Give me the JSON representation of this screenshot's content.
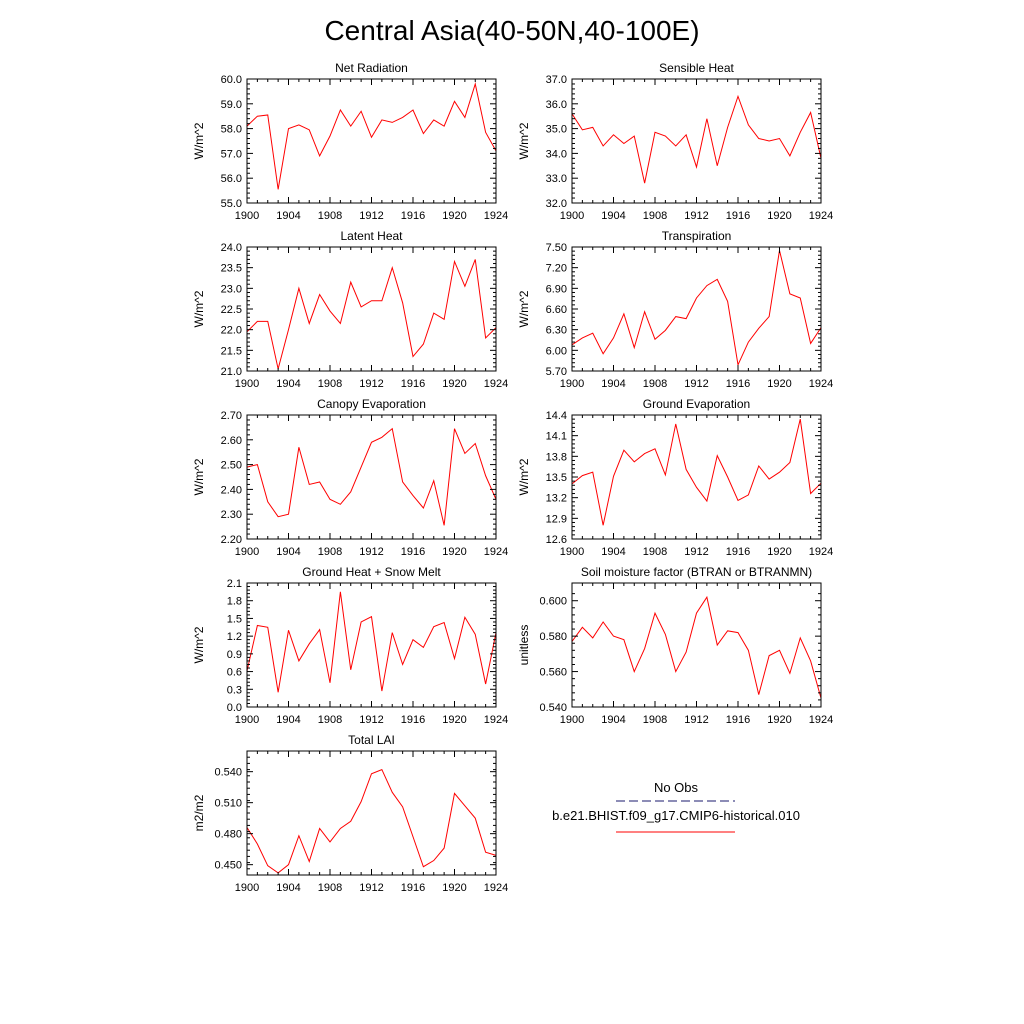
{
  "title": "Central Asia(40-50N,40-100E)",
  "legend": {
    "obs_label": "No Obs",
    "model_label": "b.e21.BHIST.f09_g17.CMIP6-historical.010",
    "obs_color": "#1a1a6e",
    "model_color": "#ff0000"
  },
  "chart_data": [
    {
      "type": "line",
      "title": "Net Radiation",
      "ylabel": "W/m^2",
      "ylim": [
        55.0,
        60.0
      ],
      "yticks": [
        55.0,
        56.0,
        57.0,
        58.0,
        59.0,
        60.0
      ],
      "yticklabels": [
        "55.0",
        "56.0",
        "57.0",
        "58.0",
        "59.0",
        "60.0"
      ],
      "xlim": [
        1900,
        1924
      ],
      "xticks": [
        1900,
        1904,
        1908,
        1912,
        1916,
        1920,
        1924
      ],
      "series": [
        {
          "color": "#ff0000",
          "x": [
            1900,
            1901,
            1902,
            1903,
            1904,
            1905,
            1906,
            1907,
            1908,
            1909,
            1910,
            1911,
            1912,
            1913,
            1914,
            1915,
            1916,
            1917,
            1918,
            1919,
            1920,
            1921,
            1922,
            1923,
            1924
          ],
          "values": [
            58.1,
            58.5,
            58.55,
            55.55,
            58.0,
            58.15,
            57.95,
            56.9,
            57.7,
            58.75,
            58.1,
            58.7,
            57.65,
            58.35,
            58.25,
            58.45,
            58.75,
            57.8,
            58.35,
            58.1,
            59.1,
            58.45,
            59.8,
            57.85,
            57.1
          ]
        }
      ]
    },
    {
      "type": "line",
      "title": "Sensible Heat",
      "ylabel": "W/m^2",
      "ylim": [
        32.0,
        37.0
      ],
      "yticks": [
        32.0,
        33.0,
        34.0,
        35.0,
        36.0,
        37.0
      ],
      "yticklabels": [
        "32.0",
        "33.0",
        "34.0",
        "35.0",
        "36.0",
        "37.0"
      ],
      "xlim": [
        1900,
        1924
      ],
      "xticks": [
        1900,
        1904,
        1908,
        1912,
        1916,
        1920,
        1924
      ],
      "series": [
        {
          "color": "#ff0000",
          "x": [
            1900,
            1901,
            1902,
            1903,
            1904,
            1905,
            1906,
            1907,
            1908,
            1909,
            1910,
            1911,
            1912,
            1913,
            1914,
            1915,
            1916,
            1917,
            1918,
            1919,
            1920,
            1921,
            1922,
            1923,
            1924
          ],
          "values": [
            35.6,
            34.95,
            35.05,
            34.3,
            34.75,
            34.4,
            34.7,
            32.8,
            34.85,
            34.7,
            34.3,
            34.75,
            33.45,
            35.4,
            33.5,
            35.05,
            36.3,
            35.15,
            34.6,
            34.5,
            34.6,
            33.9,
            34.85,
            35.65,
            33.8
          ]
        }
      ]
    },
    {
      "type": "line",
      "title": "Latent Heat",
      "ylabel": "W/m^2",
      "ylim": [
        21.0,
        24.0
      ],
      "yticks": [
        21.0,
        21.5,
        22.0,
        22.5,
        23.0,
        23.5,
        24.0
      ],
      "yticklabels": [
        "21.0",
        "21.5",
        "22.0",
        "22.5",
        "23.0",
        "23.5",
        "24.0"
      ],
      "xlim": [
        1900,
        1924
      ],
      "xticks": [
        1900,
        1904,
        1908,
        1912,
        1916,
        1920,
        1924
      ],
      "series": [
        {
          "color": "#ff0000",
          "x": [
            1900,
            1901,
            1902,
            1903,
            1904,
            1905,
            1906,
            1907,
            1908,
            1909,
            1910,
            1911,
            1912,
            1913,
            1914,
            1915,
            1916,
            1917,
            1918,
            1919,
            1920,
            1921,
            1922,
            1923,
            1924
          ],
          "values": [
            21.95,
            22.2,
            22.2,
            21.05,
            22.0,
            23.0,
            22.15,
            22.85,
            22.45,
            22.15,
            23.15,
            22.55,
            22.7,
            22.7,
            23.5,
            22.65,
            21.35,
            21.65,
            22.4,
            22.25,
            23.65,
            23.05,
            23.7,
            21.8,
            22.05
          ]
        }
      ]
    },
    {
      "type": "line",
      "title": "Transpiration",
      "ylabel": "W/m^2",
      "ylim": [
        5.7,
        7.5
      ],
      "yticks": [
        5.7,
        6.0,
        6.3,
        6.6,
        6.9,
        7.2,
        7.5
      ],
      "yticklabels": [
        "5.70",
        "6.00",
        "6.30",
        "6.60",
        "6.90",
        "7.20",
        "7.50"
      ],
      "xlim": [
        1900,
        1924
      ],
      "xticks": [
        1900,
        1904,
        1908,
        1912,
        1916,
        1920,
        1924
      ],
      "series": [
        {
          "color": "#ff0000",
          "x": [
            1900,
            1901,
            1902,
            1903,
            1904,
            1905,
            1906,
            1907,
            1908,
            1909,
            1910,
            1911,
            1912,
            1913,
            1914,
            1915,
            1916,
            1917,
            1918,
            1919,
            1920,
            1921,
            1922,
            1923,
            1924
          ],
          "values": [
            6.08,
            6.18,
            6.25,
            5.95,
            6.18,
            6.53,
            6.04,
            6.56,
            6.16,
            6.29,
            6.49,
            6.46,
            6.76,
            6.94,
            7.03,
            6.71,
            5.79,
            6.12,
            6.32,
            6.49,
            7.45,
            6.82,
            6.76,
            6.1,
            6.33
          ]
        }
      ]
    },
    {
      "type": "line",
      "title": "Canopy Evaporation",
      "ylabel": "W/m^2",
      "ylim": [
        2.2,
        2.7
      ],
      "yticks": [
        2.2,
        2.3,
        2.4,
        2.5,
        2.6,
        2.7
      ],
      "yticklabels": [
        "2.20",
        "2.30",
        "2.40",
        "2.50",
        "2.60",
        "2.70"
      ],
      "xlim": [
        1900,
        1924
      ],
      "xticks": [
        1900,
        1904,
        1908,
        1912,
        1916,
        1920,
        1924
      ],
      "series": [
        {
          "color": "#ff0000",
          "x": [
            1900,
            1901,
            1902,
            1903,
            1904,
            1905,
            1906,
            1907,
            1908,
            1909,
            1910,
            1911,
            1912,
            1913,
            1914,
            1915,
            1916,
            1917,
            1918,
            1919,
            1920,
            1921,
            1922,
            1923,
            1924
          ],
          "values": [
            2.49,
            2.5,
            2.35,
            2.29,
            2.3,
            2.57,
            2.42,
            2.43,
            2.36,
            2.34,
            2.39,
            2.49,
            2.59,
            2.61,
            2.645,
            2.43,
            2.375,
            2.325,
            2.435,
            2.255,
            2.645,
            2.545,
            2.585,
            2.455,
            2.36
          ]
        }
      ]
    },
    {
      "type": "line",
      "title": "Ground Evaporation",
      "ylabel": "W/m^2",
      "ylim": [
        12.6,
        14.4
      ],
      "yticks": [
        12.6,
        12.9,
        13.2,
        13.5,
        13.8,
        14.1,
        14.4
      ],
      "yticklabels": [
        "12.6",
        "12.9",
        "13.2",
        "13.5",
        "13.8",
        "14.1",
        "14.4"
      ],
      "xlim": [
        1900,
        1924
      ],
      "xticks": [
        1900,
        1904,
        1908,
        1912,
        1916,
        1920,
        1924
      ],
      "series": [
        {
          "color": "#ff0000",
          "x": [
            1900,
            1901,
            1902,
            1903,
            1904,
            1905,
            1906,
            1907,
            1908,
            1909,
            1910,
            1911,
            1912,
            1913,
            1914,
            1915,
            1916,
            1917,
            1918,
            1919,
            1920,
            1921,
            1922,
            1923,
            1924
          ],
          "values": [
            13.4,
            13.52,
            13.57,
            12.8,
            13.51,
            13.89,
            13.72,
            13.84,
            13.91,
            13.53,
            14.27,
            13.61,
            13.35,
            13.15,
            13.81,
            13.5,
            13.16,
            13.24,
            13.66,
            13.47,
            13.57,
            13.71,
            14.34,
            13.26,
            13.41
          ]
        }
      ]
    },
    {
      "type": "line",
      "title": "Ground Heat + Snow Melt",
      "ylabel": "W/m^2",
      "ylim": [
        0.0,
        2.1
      ],
      "yticks": [
        0.0,
        0.3,
        0.6,
        0.9,
        1.2,
        1.5,
        1.8,
        2.1
      ],
      "yticklabels": [
        "0.0",
        "0.3",
        "0.6",
        "0.9",
        "1.2",
        "1.5",
        "1.8",
        "2.1"
      ],
      "xlim": [
        1900,
        1924
      ],
      "xticks": [
        1900,
        1904,
        1908,
        1912,
        1916,
        1920,
        1924
      ],
      "series": [
        {
          "color": "#ff0000",
          "x": [
            1900,
            1901,
            1902,
            1903,
            1904,
            1905,
            1906,
            1907,
            1908,
            1909,
            1910,
            1911,
            1912,
            1913,
            1914,
            1915,
            1916,
            1917,
            1918,
            1919,
            1920,
            1921,
            1922,
            1923,
            1924
          ],
          "values": [
            0.61,
            1.38,
            1.35,
            0.25,
            1.3,
            0.78,
            1.07,
            1.31,
            0.41,
            1.95,
            0.63,
            1.44,
            1.53,
            0.27,
            1.26,
            0.72,
            1.14,
            1.01,
            1.36,
            1.43,
            0.82,
            1.52,
            1.23,
            0.39,
            1.26
          ]
        }
      ]
    },
    {
      "type": "line",
      "title": "Soil moisture factor (BTRAN or BTRANMN)",
      "ylabel": "unitless",
      "ylim": [
        0.54,
        0.61
      ],
      "yticks": [
        0.54,
        0.56,
        0.58,
        0.6
      ],
      "yticklabels": [
        "0.540",
        "0.560",
        "0.580",
        "0.600"
      ],
      "xlim": [
        1900,
        1924
      ],
      "xticks": [
        1900,
        1904,
        1908,
        1912,
        1916,
        1920,
        1924
      ],
      "series": [
        {
          "color": "#ff0000",
          "x": [
            1900,
            1901,
            1902,
            1903,
            1904,
            1905,
            1906,
            1907,
            1908,
            1909,
            1910,
            1911,
            1912,
            1913,
            1914,
            1915,
            1916,
            1917,
            1918,
            1919,
            1920,
            1921,
            1922,
            1923,
            1924
          ],
          "values": [
            0.577,
            0.585,
            0.579,
            0.588,
            0.58,
            0.578,
            0.56,
            0.573,
            0.593,
            0.581,
            0.56,
            0.571,
            0.593,
            0.602,
            0.575,
            0.583,
            0.582,
            0.572,
            0.547,
            0.569,
            0.572,
            0.559,
            0.579,
            0.566,
            0.545
          ]
        }
      ]
    },
    {
      "type": "line",
      "title": "Total LAI",
      "ylabel": "m2/m2",
      "ylim": [
        0.44,
        0.56
      ],
      "yticks": [
        0.45,
        0.48,
        0.51,
        0.54
      ],
      "yticklabels": [
        "0.450",
        "0.480",
        "0.510",
        "0.540"
      ],
      "xlim": [
        1900,
        1924
      ],
      "xticks": [
        1900,
        1904,
        1908,
        1912,
        1916,
        1920,
        1924
      ],
      "series": [
        {
          "color": "#ff0000",
          "x": [
            1900,
            1901,
            1902,
            1903,
            1904,
            1905,
            1906,
            1907,
            1908,
            1909,
            1910,
            1911,
            1912,
            1913,
            1914,
            1915,
            1916,
            1917,
            1918,
            1919,
            1920,
            1921,
            1922,
            1923,
            1924
          ],
          "values": [
            0.486,
            0.47,
            0.449,
            0.442,
            0.45,
            0.478,
            0.453,
            0.485,
            0.472,
            0.485,
            0.492,
            0.511,
            0.538,
            0.542,
            0.52,
            0.506,
            0.477,
            0.448,
            0.454,
            0.466,
            0.519,
            0.507,
            0.495,
            0.462,
            0.459
          ]
        }
      ]
    }
  ]
}
